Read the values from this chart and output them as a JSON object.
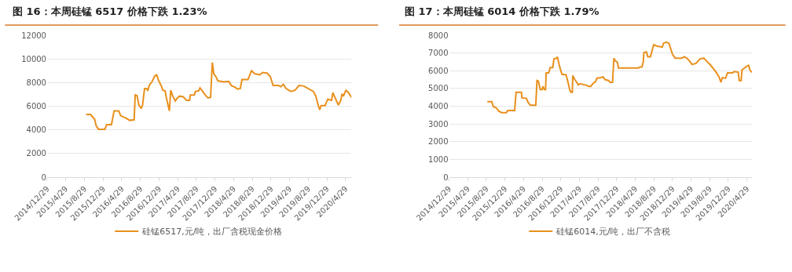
{
  "chart_data": [
    {
      "type": "line",
      "title": "图 16：本周硅锰 6517 价格下跌 1.23%",
      "series": [
        {
          "name": "硅锰6517,元/吨，出厂含税现金价格",
          "color": "#e8901d",
          "x": [
            "2015-09-10",
            "2015-10-08",
            "2015-11-04",
            "2015-11-14",
            "2015-11-29",
            "2016-01-10",
            "2016-01-22",
            "2016-02-22",
            "2016-03-10",
            "2016-04-10",
            "2016-04-22",
            "2016-05-26",
            "2016-06-20",
            "2016-07-19",
            "2016-07-26",
            "2016-08-07",
            "2016-08-19",
            "2016-09-04",
            "2016-09-12",
            "2016-09-25",
            "2016-10-08",
            "2016-10-16",
            "2016-10-27",
            "2016-11-12",
            "2016-11-30",
            "2016-12-13",
            "2016-12-25",
            "2017-01-11",
            "2017-01-23",
            "2017-02-06",
            "2017-02-14",
            "2017-02-26",
            "2017-03-06",
            "2017-03-15",
            "2017-03-28",
            "2017-04-14",
            "2017-04-27",
            "2017-05-12",
            "2017-06-04",
            "2017-06-26",
            "2017-07-16",
            "2017-07-21",
            "2017-08-16",
            "2017-08-23",
            "2017-09-13",
            "2017-09-22",
            "2017-10-04",
            "2017-10-26",
            "2017-11-13",
            "2017-11-30",
            "2017-12-11",
            "2017-12-21",
            "2018-01-06",
            "2018-01-16",
            "2018-02-23",
            "2018-03-29",
            "2018-04-14",
            "2018-05-09",
            "2018-05-26",
            "2018-06-12",
            "2018-06-23",
            "2018-08-01",
            "2018-08-24",
            "2018-09-14",
            "2018-10-18",
            "2018-11-04",
            "2018-12-04",
            "2018-12-25",
            "2019-01-12",
            "2019-02-16",
            "2019-03-04",
            "2019-03-20",
            "2019-04-06",
            "2019-05-08",
            "2019-06-04",
            "2019-06-30",
            "2019-08-02",
            "2019-08-28",
            "2019-10-02",
            "2019-10-18",
            "2019-11-04",
            "2019-11-13",
            "2019-11-21",
            "2019-12-17",
            "2020-01-04",
            "2020-01-29",
            "2020-02-06",
            "2020-02-16",
            "2020-03-13",
            "2020-03-29",
            "2020-04-06",
            "2020-04-15",
            "2020-05-01",
            "2020-05-18",
            "2020-06-07"
          ],
          "values": [
            5300,
            5300,
            4900,
            4350,
            4050,
            4050,
            4450,
            4450,
            5600,
            5600,
            5200,
            5000,
            4800,
            4850,
            6950,
            6900,
            6100,
            5800,
            6100,
            7500,
            7500,
            7300,
            7800,
            8050,
            8550,
            8650,
            8200,
            7750,
            7350,
            7300,
            6750,
            6050,
            5600,
            7350,
            6850,
            6450,
            6700,
            6850,
            6800,
            6500,
            6500,
            6950,
            6950,
            7250,
            7300,
            7550,
            7350,
            6950,
            6700,
            6750,
            9700,
            8750,
            8450,
            8150,
            8050,
            8100,
            7750,
            7600,
            7450,
            7500,
            8250,
            8250,
            9000,
            8750,
            8650,
            8850,
            8800,
            8500,
            7750,
            7750,
            7650,
            7850,
            7500,
            7250,
            7350,
            7750,
            7700,
            7500,
            7250,
            6850,
            6000,
            5700,
            6050,
            6050,
            6600,
            6500,
            7150,
            6850,
            6100,
            6500,
            7050,
            6850,
            7350,
            7150,
            6750
          ]
        }
      ],
      "xlim": [
        "2014-12-29",
        "2020-06-07"
      ],
      "xticks": [
        {
          "value": "2014-12-29",
          "label": "2014/12/29"
        },
        {
          "value": "2015-04-29",
          "label": "2015/4/29"
        },
        {
          "value": "2015-08-29",
          "label": "2015/8/29"
        },
        {
          "value": "2015-12-29",
          "label": "2015/12/29"
        },
        {
          "value": "2016-04-29",
          "label": "2016/4/29"
        },
        {
          "value": "2016-08-29",
          "label": "2016/8/29"
        },
        {
          "value": "2016-12-29",
          "label": "2016/12/29"
        },
        {
          "value": "2017-04-29",
          "label": "2017/4/29"
        },
        {
          "value": "2017-08-29",
          "label": "2017/8/29"
        },
        {
          "value": "2017-12-29",
          "label": "2017/12/29"
        },
        {
          "value": "2018-04-29",
          "label": "2018/4/29"
        },
        {
          "value": "2018-08-29",
          "label": "2018/8/29"
        },
        {
          "value": "2018-12-29",
          "label": "2018/12/29"
        },
        {
          "value": "2019-04-29",
          "label": "2019/4/29"
        },
        {
          "value": "2019-08-29",
          "label": "2019/8/29"
        },
        {
          "value": "2019-12-29",
          "label": "2019/12/29"
        },
        {
          "value": "2020-04-29",
          "label": "2020/4/29"
        }
      ],
      "ylim": [
        0,
        12000
      ],
      "yticks": [
        0,
        2000,
        4000,
        6000,
        8000,
        10000,
        12000
      ],
      "grid": "y",
      "legend": "bottom",
      "marker": "none",
      "line_style": "solid"
    },
    {
      "type": "line",
      "title": "图 17：本周硅锰 6014 价格下跌 1.79%",
      "series": [
        {
          "name": "硅锰6014,元/吨，出厂不含税",
          "color": "#e8901d",
          "x": [
            "2015-09-05",
            "2015-10-05",
            "2015-10-14",
            "2015-11-04",
            "2015-11-18",
            "2015-12-08",
            "2016-01-08",
            "2016-01-16",
            "2016-03-02",
            "2016-03-11",
            "2016-04-15",
            "2016-04-18",
            "2016-05-18",
            "2016-05-31",
            "2016-06-14",
            "2016-07-18",
            "2016-07-26",
            "2016-08-04",
            "2016-08-16",
            "2016-08-27",
            "2016-09-03",
            "2016-09-11",
            "2016-09-20",
            "2016-09-24",
            "2016-10-11",
            "2016-10-20",
            "2016-11-06",
            "2016-11-14",
            "2016-12-01",
            "2016-12-06",
            "2016-12-18",
            "2017-01-05",
            "2017-02-01",
            "2017-02-12",
            "2017-02-26",
            "2017-03-06",
            "2017-03-14",
            "2017-03-17",
            "2017-03-30",
            "2017-04-12",
            "2017-04-22",
            "2017-05-03",
            "2017-06-06",
            "2017-07-02",
            "2017-07-13",
            "2017-07-26",
            "2017-08-13",
            "2017-08-22",
            "2017-09-16",
            "2017-10-02",
            "2017-10-14",
            "2017-11-06",
            "2017-11-15",
            "2017-12-02",
            "2017-12-11",
            "2017-12-20",
            "2018-01-03",
            "2018-01-10",
            "2018-05-21",
            "2018-05-29",
            "2018-06-12",
            "2018-06-21",
            "2018-06-25",
            "2018-07-12",
            "2018-07-21",
            "2018-08-07",
            "2018-08-21",
            "2018-08-29",
            "2018-09-18",
            "2018-10-23",
            "2018-11-01",
            "2018-11-19",
            "2018-12-06",
            "2018-12-29",
            "2019-01-16",
            "2019-02-28",
            "2019-03-17",
            "2019-04-02",
            "2019-04-19",
            "2019-05-06",
            "2019-06-01",
            "2019-06-27",
            "2019-07-22",
            "2019-08-08",
            "2019-09-03",
            "2019-10-08",
            "2019-10-30",
            "2019-11-11",
            "2019-11-20",
            "2019-12-12",
            "2019-12-24",
            "2020-01-27",
            "2020-02-05",
            "2020-03-03",
            "2020-03-10",
            "2020-03-23",
            "2020-03-27",
            "2020-04-07",
            "2020-04-17",
            "2020-04-29",
            "2020-05-10",
            "2020-05-19",
            "2020-06-01"
          ],
          "values": [
            4250,
            4250,
            3980,
            3900,
            3730,
            3640,
            3640,
            3760,
            3760,
            4790,
            4790,
            4480,
            4440,
            4180,
            4060,
            4060,
            5450,
            5420,
            4940,
            4940,
            5120,
            4940,
            4940,
            5880,
            5880,
            6180,
            6180,
            6670,
            6710,
            6790,
            6330,
            5800,
            5770,
            5420,
            4890,
            4790,
            4790,
            5730,
            5500,
            5350,
            5200,
            5270,
            5200,
            5120,
            5120,
            5270,
            5390,
            5580,
            5610,
            5650,
            5500,
            5450,
            5350,
            5350,
            6710,
            6560,
            6480,
            6150,
            6150,
            6210,
            6210,
            6480,
            7020,
            7060,
            6790,
            6790,
            7240,
            7470,
            7390,
            7330,
            7550,
            7610,
            7550,
            6940,
            6710,
            6710,
            6790,
            6710,
            6560,
            6360,
            6410,
            6670,
            6710,
            6560,
            6330,
            5950,
            5650,
            5350,
            5610,
            5580,
            5880,
            5880,
            5950,
            5920,
            5450,
            5450,
            6030,
            6110,
            6180,
            6260,
            6300,
            6030,
            5910
          ]
        }
      ],
      "xlim": [
        "2014-12-29",
        "2020-06-01"
      ],
      "xticks": [
        {
          "value": "2014-12-29",
          "label": "2014/12/29"
        },
        {
          "value": "2015-04-29",
          "label": "2015/4/29"
        },
        {
          "value": "2015-08-29",
          "label": "2015/8/29"
        },
        {
          "value": "2015-12-29",
          "label": "2015/12/29"
        },
        {
          "value": "2016-04-29",
          "label": "2016/4/29"
        },
        {
          "value": "2016-08-29",
          "label": "2016/8/29"
        },
        {
          "value": "2016-12-29",
          "label": "2016/12/29"
        },
        {
          "value": "2017-04-29",
          "label": "2017/4/29"
        },
        {
          "value": "2017-08-29",
          "label": "2017/8/29"
        },
        {
          "value": "2017-12-29",
          "label": "2017/12/29"
        },
        {
          "value": "2018-04-29",
          "label": "2018/4/29"
        },
        {
          "value": "2018-08-29",
          "label": "2018/8/29"
        },
        {
          "value": "2018-12-29",
          "label": "2018/12/29"
        },
        {
          "value": "2019-04-29",
          "label": "2019/4/29"
        },
        {
          "value": "2019-08-29",
          "label": "2019/8/29"
        },
        {
          "value": "2019-12-29",
          "label": "2019/12/29"
        },
        {
          "value": "2020-04-29",
          "label": "2020/4/29"
        }
      ],
      "ylim": [
        0,
        8000
      ],
      "yticks": [
        0,
        1000,
        2000,
        3000,
        4000,
        5000,
        6000,
        7000,
        8000
      ],
      "grid": "y",
      "legend": "bottom",
      "marker": "none",
      "line_style": "solid"
    }
  ]
}
